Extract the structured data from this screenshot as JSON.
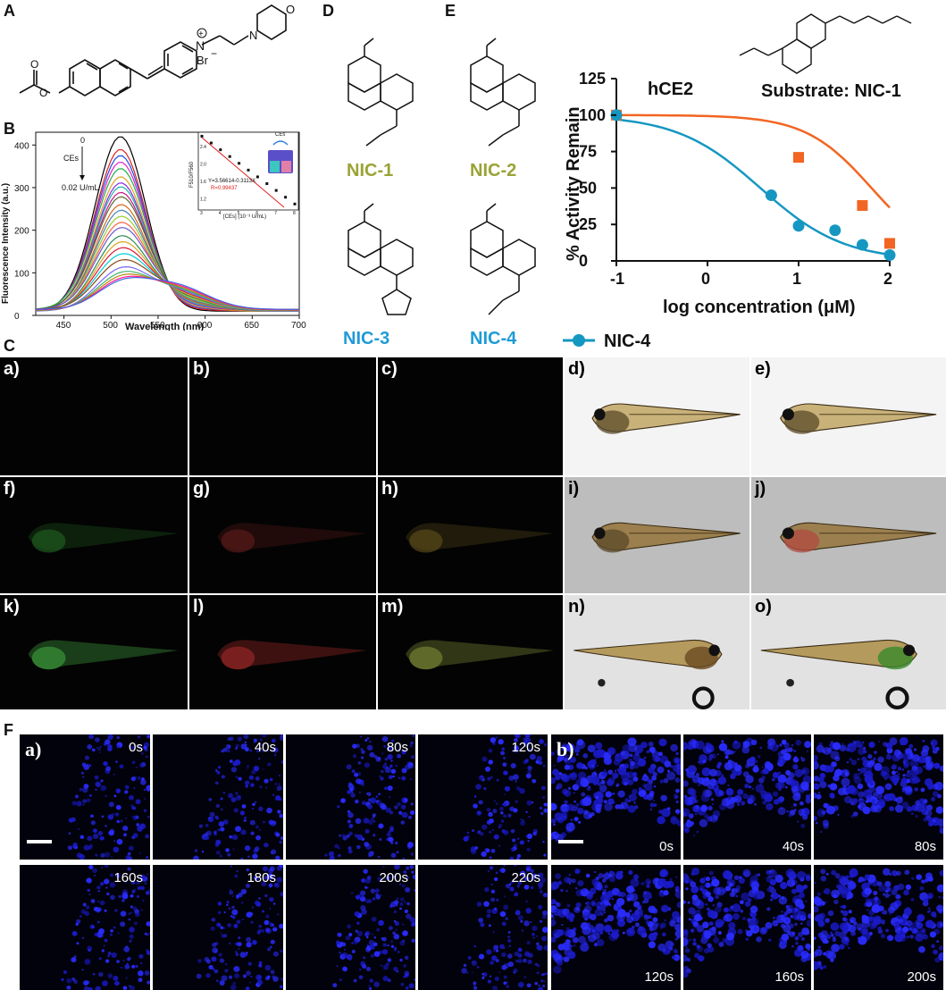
{
  "panel_labels": {
    "A": "A",
    "B": "B",
    "C": "C",
    "D": "D",
    "E": "E",
    "F": "F"
  },
  "colors": {
    "nic_yellow": "#9aa335",
    "nic_blue": "#1f9bd7",
    "curve_orange": "#f26522",
    "curve_blue": "#1597c2",
    "series_red": "#e0201e"
  },
  "panel_a": {
    "atom_labels": {
      "nplus": "N",
      "bromide": "Br",
      "minus": "−",
      "plus": "+",
      "oxygen": "O",
      "nitrogen": "N",
      "carbonyl_o": "O",
      "ester_o": "O"
    }
  },
  "panel_b": {
    "ylabel": "Fluorescence Intensity (a.u.)",
    "xlabel": "Wavelength (nm)",
    "x_ticks": [
      "450",
      "500",
      "550",
      "600",
      "650",
      "700"
    ],
    "y_ticks": [
      "0",
      "100",
      "200",
      "300",
      "400"
    ],
    "arrow_top": "0",
    "arrow_mid": "CEs",
    "arrow_bottom": "0.02 U/mL",
    "inset": {
      "ylabel": "F510/F560",
      "xlabel": "[CEs] (10⁻³ U/mL)",
      "equation": "Y=3.56614-0.3113X",
      "r_value": "R=0.99437",
      "x_ticks": [
        "3",
        "4",
        "5",
        "6",
        "7",
        "8"
      ],
      "y_ticks": [
        "1.2",
        "1.6",
        "2.0",
        "2.4"
      ],
      "vial_label": "CEs"
    }
  },
  "panel_d": {
    "nic1": "NIC-1",
    "nic2": "NIC-2",
    "nic3": "NIC-3",
    "nic4": "NIC-4"
  },
  "chart_data": {
    "type": "scatter",
    "title": "hCE2",
    "annotation": "Substrate: NIC-1",
    "xlabel": "log concentration (μM)",
    "ylabel": "% Activity Remain",
    "xlim": [
      -1,
      2
    ],
    "ylim": [
      0,
      125
    ],
    "x_ticks": [
      "-1",
      "0",
      "1",
      "2"
    ],
    "y_ticks": [
      "0",
      "25",
      "50",
      "75",
      "100",
      "125"
    ],
    "series": [
      {
        "name": "",
        "color": "#f26522",
        "marker": "square",
        "x": [
          -1,
          1.0,
          1.7,
          2.0
        ],
        "y": [
          100,
          71,
          38,
          12
        ],
        "curve": {
          "top": 100,
          "bottom": 0,
          "logIC50": 1.8,
          "hill": 1.2
        }
      },
      {
        "name": "NIC-4",
        "color": "#1597c2",
        "marker": "circle",
        "x": [
          -1,
          0.7,
          1.0,
          1.4,
          1.7,
          2.0
        ],
        "y": [
          100,
          45,
          24,
          21,
          11,
          4
        ],
        "curve": {
          "top": 100,
          "bottom": 0,
          "logIC50": 0.58,
          "hill": 0.95
        }
      }
    ]
  },
  "panel_c": {
    "tiles": [
      {
        "label": "a)"
      },
      {
        "label": "b)"
      },
      {
        "label": "c)"
      },
      {
        "label": "d)"
      },
      {
        "label": "e)"
      },
      {
        "label": "f)"
      },
      {
        "label": "g)"
      },
      {
        "label": "h)"
      },
      {
        "label": "i)"
      },
      {
        "label": "j)"
      },
      {
        "label": "k)"
      },
      {
        "label": "l)"
      },
      {
        "label": "m)"
      },
      {
        "label": "n)"
      },
      {
        "label": "o)"
      }
    ]
  },
  "panel_f": {
    "a_label": "a)",
    "b_label": "b)",
    "a_times": [
      "0s",
      "40s",
      "80s",
      "120s",
      "160s",
      "180s",
      "200s",
      "220s"
    ],
    "b_times": [
      "0s",
      "40s",
      "80s",
      "120s",
      "160s",
      "200s"
    ]
  }
}
